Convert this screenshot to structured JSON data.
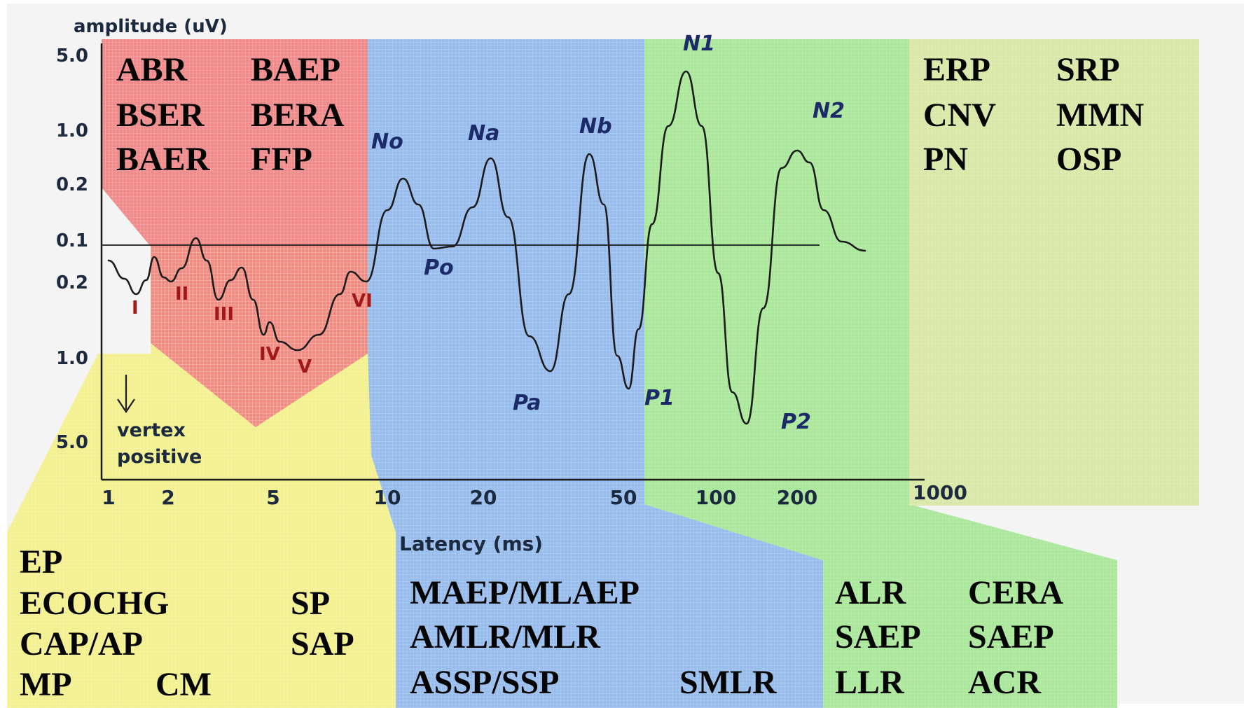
{
  "chart_data": {
    "type": "line",
    "ylabel": "amplitude (uV)",
    "xlabel": "Latency (ms)",
    "x_scale": "log",
    "xlim": [
      1,
      1000
    ],
    "x_ticks": [
      "1",
      "2",
      "5",
      "10",
      "20",
      "50",
      "100",
      "200",
      "1000"
    ],
    "y_ticks": [
      "5.0",
      "1.0",
      "0.2",
      "0.1",
      "0.2",
      "1.0",
      "5.0"
    ],
    "note": "vertex positive",
    "waveform": {
      "x": [
        1,
        1.2,
        1.38,
        1.55,
        1.7,
        1.9,
        2.05,
        2.25,
        2.55,
        2.8,
        3.1,
        3.45,
        3.8,
        4.2,
        4.6,
        4.85,
        5.2,
        5.8,
        6.6,
        7.5,
        8.0,
        8.8,
        10.0,
        11.2,
        12.5,
        14.0,
        16.0,
        18.5,
        21.0,
        23.5,
        27.0,
        31.0,
        35.0,
        40.0,
        44.0,
        48.0,
        52.0,
        56.0,
        62.0,
        70.0,
        80.0,
        90.0,
        102.0,
        115.0,
        130.0,
        150.0,
        175.0,
        200.0,
        230.0,
        270.0,
        330.0,
        430.0
      ],
      "label_points": [
        {
          "label": "I",
          "x": 1.4
        },
        {
          "label": "II",
          "x": 2.0
        },
        {
          "label": "III",
          "x": 3.2
        },
        {
          "label": "IV",
          "x": 4.6
        },
        {
          "label": "V",
          "x": 5.8
        },
        {
          "label": "VI",
          "x": 8.6
        },
        {
          "label": "No",
          "x": 10.5
        },
        {
          "label": "Po",
          "x": 14.0
        },
        {
          "label": "Na",
          "x": 20.0
        },
        {
          "label": "Pa",
          "x": 30.0
        },
        {
          "label": "Nb",
          "x": 42.0
        },
        {
          "label": "P1",
          "x": 60.0
        },
        {
          "label": "N1",
          "x": 100.0
        },
        {
          "label": "P2",
          "x": 185.0
        },
        {
          "label": "N2",
          "x": 220.0
        }
      ]
    }
  },
  "groups": {
    "red": {
      "color": "#f08080",
      "terms": [
        "ABR",
        "BAEP",
        "BSER",
        "BERA",
        "BAER",
        "FFP"
      ]
    },
    "blue": {
      "color": "#8eb7ec",
      "terms": [
        "MAEP/MLAEP",
        "AMLR/MLR",
        "ASSP/SSP",
        "SMLR"
      ]
    },
    "green": {
      "color": "#a2e691",
      "terms": [
        "ALR",
        "CERA",
        "SAEP",
        "SAEP",
        "LLR",
        "ACR"
      ]
    },
    "olive": {
      "color": "#d6e69e",
      "terms": [
        "ERP",
        "SRP",
        "CNV",
        "MMN",
        "PN",
        "OSP"
      ]
    },
    "yellow": {
      "color": "#f3f084",
      "terms": [
        "EP",
        "ECOCHG",
        "SP",
        "CAP/AP",
        "SAP",
        "MP",
        "CM"
      ]
    }
  }
}
